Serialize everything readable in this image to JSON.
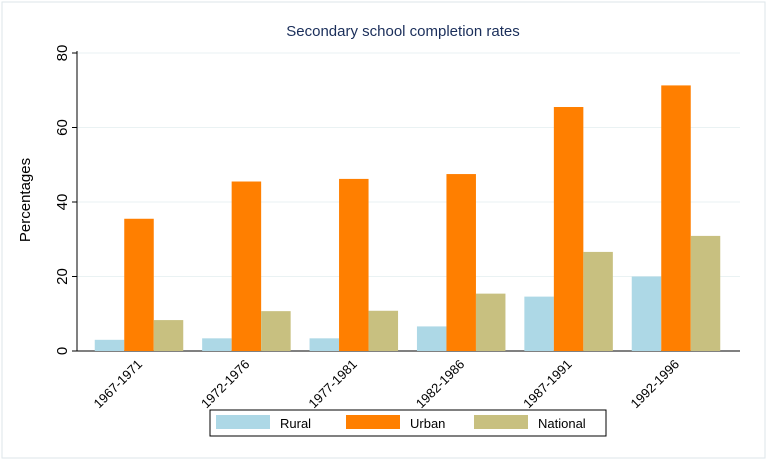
{
  "chart_data": {
    "type": "bar",
    "title": "Secondary school completion rates",
    "y_label": "Percentages",
    "categories": [
      "1967-1971",
      "1972-1976",
      "1977-1981",
      "1982-1986",
      "1987-1991",
      "1992-1996"
    ],
    "series": [
      {
        "name": "Rural",
        "color": "#add8e6",
        "values": [
          3.0,
          3.4,
          3.4,
          6.6,
          14.6,
          20.0
        ]
      },
      {
        "name": "Urban",
        "color": "#ff7f00",
        "values": [
          35.5,
          45.5,
          46.2,
          47.5,
          65.5,
          71.3
        ]
      },
      {
        "name": "National",
        "color": "#c8c080",
        "values": [
          8.3,
          10.7,
          10.8,
          15.4,
          26.6,
          30.9
        ]
      }
    ],
    "ylim": [
      0,
      80
    ],
    "yticks": [
      0,
      20,
      40,
      60,
      80
    ],
    "grid": true,
    "legend": "bottom"
  }
}
